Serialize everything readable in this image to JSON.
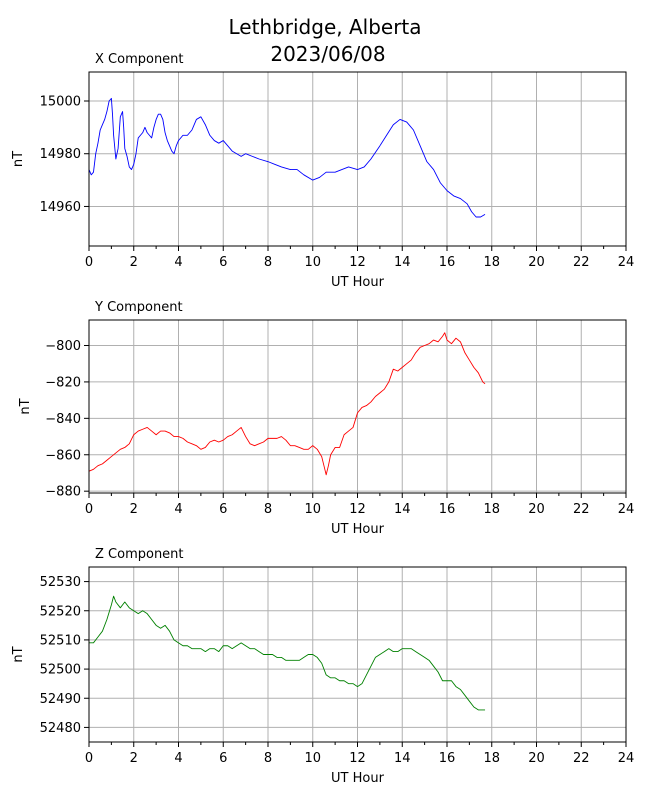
{
  "figure": {
    "title_line1": "Lethbridge, Alberta",
    "title_line2": "2023/06/08"
  },
  "chart_data": [
    {
      "type": "line",
      "panel_title": "X Component",
      "xlabel": "UT Hour",
      "ylabel": "nT",
      "xlim": [
        0,
        24
      ],
      "ylim": [
        14945,
        15011
      ],
      "xticks": [
        0,
        2,
        4,
        6,
        8,
        10,
        12,
        14,
        16,
        18,
        20,
        22,
        24
      ],
      "yticks": [
        14960,
        14980,
        15000
      ],
      "grid": true,
      "series": [
        {
          "color": "#0000ff",
          "x": [
            0.0,
            0.1,
            0.2,
            0.3,
            0.4,
            0.5,
            0.6,
            0.7,
            0.8,
            0.9,
            1.0,
            1.05,
            1.1,
            1.2,
            1.3,
            1.4,
            1.5,
            1.55,
            1.6,
            1.7,
            1.8,
            1.9,
            2.0,
            2.1,
            2.2,
            2.3,
            2.4,
            2.5,
            2.6,
            2.7,
            2.8,
            2.9,
            3.0,
            3.1,
            3.2,
            3.3,
            3.4,
            3.5,
            3.6,
            3.7,
            3.8,
            3.9,
            4.0,
            4.2,
            4.4,
            4.6,
            4.8,
            5.0,
            5.2,
            5.4,
            5.6,
            5.8,
            6.0,
            6.2,
            6.4,
            6.6,
            6.8,
            7.0,
            7.3,
            7.6,
            8.0,
            8.3,
            8.6,
            9.0,
            9.3,
            9.6,
            10.0,
            10.3,
            10.6,
            11.0,
            11.3,
            11.6,
            12.0,
            12.3,
            12.6,
            13.0,
            13.3,
            13.6,
            13.9,
            14.2,
            14.5,
            14.8,
            15.1,
            15.4,
            15.7,
            16.0,
            16.3,
            16.6,
            16.9,
            17.1,
            17.3,
            17.5,
            17.7
          ],
          "y": [
            14974,
            14972,
            14973,
            14980,
            14984,
            14989,
            14991,
            14993,
            14996,
            15000,
            15001,
            14995,
            14987,
            14978,
            14982,
            14994,
            14996,
            14990,
            14982,
            14979,
            14975,
            14974,
            14976,
            14980,
            14986,
            14987,
            14988,
            14990,
            14988,
            14987,
            14986,
            14990,
            14993,
            14995,
            14995,
            14993,
            14988,
            14985,
            14983,
            14981,
            14980,
            14983,
            14985,
            14987,
            14987,
            14989,
            14993,
            14994,
            14991,
            14987,
            14985,
            14984,
            14985,
            14983,
            14981,
            14980,
            14979,
            14980,
            14979,
            14978,
            14977,
            14976,
            14975,
            14974,
            14974,
            14972,
            14970,
            14971,
            14973,
            14973,
            14974,
            14975,
            14974,
            14975,
            14978,
            14983,
            14987,
            14991,
            14993,
            14992,
            14989,
            14983,
            14977,
            14974,
            14969,
            14966,
            14964,
            14963,
            14961,
            14958,
            14956,
            14956,
            14957
          ]
        }
      ]
    },
    {
      "type": "line",
      "panel_title": "Y Component",
      "xlabel": "UT Hour",
      "ylabel": "nT",
      "xlim": [
        0,
        24
      ],
      "ylim": [
        -881,
        -786
      ],
      "xticks": [
        0,
        2,
        4,
        6,
        8,
        10,
        12,
        14,
        16,
        18,
        20,
        22,
        24
      ],
      "yticks": [
        -880,
        -860,
        -840,
        -820,
        -800
      ],
      "grid": true,
      "series": [
        {
          "color": "#ff0000",
          "x": [
            0.0,
            0.2,
            0.4,
            0.6,
            0.8,
            1.0,
            1.2,
            1.4,
            1.6,
            1.8,
            2.0,
            2.2,
            2.4,
            2.6,
            2.8,
            3.0,
            3.2,
            3.4,
            3.6,
            3.8,
            4.0,
            4.2,
            4.4,
            4.6,
            4.8,
            5.0,
            5.2,
            5.4,
            5.6,
            5.8,
            6.0,
            6.2,
            6.4,
            6.6,
            6.8,
            7.0,
            7.2,
            7.4,
            7.6,
            7.8,
            8.0,
            8.2,
            8.4,
            8.6,
            8.8,
            9.0,
            9.2,
            9.4,
            9.6,
            9.8,
            10.0,
            10.2,
            10.4,
            10.5,
            10.6,
            10.7,
            10.8,
            11.0,
            11.2,
            11.4,
            11.6,
            11.8,
            12.0,
            12.2,
            12.4,
            12.6,
            12.8,
            13.0,
            13.2,
            13.4,
            13.6,
            13.8,
            14.0,
            14.2,
            14.4,
            14.6,
            14.8,
            15.0,
            15.2,
            15.4,
            15.6,
            15.8,
            15.9,
            16.0,
            16.2,
            16.4,
            16.6,
            16.8,
            17.0,
            17.2,
            17.4,
            17.6,
            17.7
          ],
          "y": [
            -869,
            -868,
            -866,
            -865,
            -863,
            -861,
            -859,
            -857,
            -856,
            -854,
            -849,
            -847,
            -846,
            -845,
            -847,
            -849,
            -847,
            -847,
            -848,
            -850,
            -850,
            -851,
            -853,
            -854,
            -855,
            -857,
            -856,
            -853,
            -852,
            -853,
            -852,
            -850,
            -849,
            -847,
            -845,
            -850,
            -854,
            -855,
            -854,
            -853,
            -851,
            -851,
            -851,
            -850,
            -852,
            -855,
            -855,
            -856,
            -857,
            -857,
            -855,
            -857,
            -861,
            -866,
            -871,
            -866,
            -860,
            -856,
            -856,
            -849,
            -847,
            -845,
            -837,
            -834,
            -833,
            -831,
            -828,
            -826,
            -824,
            -820,
            -813,
            -814,
            -812,
            -810,
            -808,
            -804,
            -801,
            -800,
            -799,
            -797,
            -798,
            -795,
            -793,
            -797,
            -799,
            -796,
            -798,
            -804,
            -808,
            -812,
            -815,
            -820,
            -821
          ]
        }
      ]
    },
    {
      "type": "line",
      "panel_title": "Z Component",
      "xlabel": "UT Hour",
      "ylabel": "nT",
      "xlim": [
        0,
        24
      ],
      "ylim": [
        52475,
        52535
      ],
      "xticks": [
        0,
        2,
        4,
        6,
        8,
        10,
        12,
        14,
        16,
        18,
        20,
        22,
        24
      ],
      "yticks": [
        52480,
        52490,
        52500,
        52510,
        52520,
        52530
      ],
      "grid": true,
      "series": [
        {
          "color": "#008000",
          "x": [
            0.0,
            0.2,
            0.4,
            0.6,
            0.8,
            1.0,
            1.1,
            1.2,
            1.4,
            1.6,
            1.8,
            2.0,
            2.2,
            2.4,
            2.6,
            2.8,
            3.0,
            3.2,
            3.4,
            3.6,
            3.8,
            4.0,
            4.2,
            4.4,
            4.6,
            4.8,
            5.0,
            5.2,
            5.4,
            5.6,
            5.8,
            6.0,
            6.2,
            6.4,
            6.6,
            6.8,
            7.0,
            7.2,
            7.4,
            7.6,
            7.8,
            8.0,
            8.2,
            8.4,
            8.6,
            8.8,
            9.0,
            9.2,
            9.4,
            9.6,
            9.8,
            10.0,
            10.2,
            10.4,
            10.6,
            10.8,
            11.0,
            11.2,
            11.4,
            11.6,
            11.8,
            12.0,
            12.2,
            12.4,
            12.6,
            12.8,
            13.0,
            13.2,
            13.4,
            13.6,
            13.8,
            14.0,
            14.2,
            14.4,
            14.6,
            14.8,
            15.0,
            15.2,
            15.4,
            15.6,
            15.8,
            16.0,
            16.2,
            16.4,
            16.6,
            16.8,
            17.0,
            17.2,
            17.4,
            17.7
          ],
          "y": [
            52509,
            52509,
            52511,
            52513,
            52517,
            52522,
            52525,
            52523,
            52521,
            52523,
            52521,
            52520,
            52519,
            52520,
            52519,
            52517,
            52515,
            52514,
            52515,
            52513,
            52510,
            52509,
            52508,
            52508,
            52507,
            52507,
            52507,
            52506,
            52507,
            52507,
            52506,
            52508,
            52508,
            52507,
            52508,
            52509,
            52508,
            52507,
            52507,
            52506,
            52505,
            52505,
            52505,
            52504,
            52504,
            52503,
            52503,
            52503,
            52503,
            52504,
            52505,
            52505,
            52504,
            52502,
            52498,
            52497,
            52497,
            52496,
            52496,
            52495,
            52495,
            52494,
            52495,
            52498,
            52501,
            52504,
            52505,
            52506,
            52507,
            52506,
            52506,
            52507,
            52507,
            52507,
            52506,
            52505,
            52504,
            52503,
            52501,
            52499,
            52496,
            52496,
            52496,
            52494,
            52493,
            52491,
            52489,
            52487,
            52486,
            52486
          ]
        }
      ]
    }
  ]
}
